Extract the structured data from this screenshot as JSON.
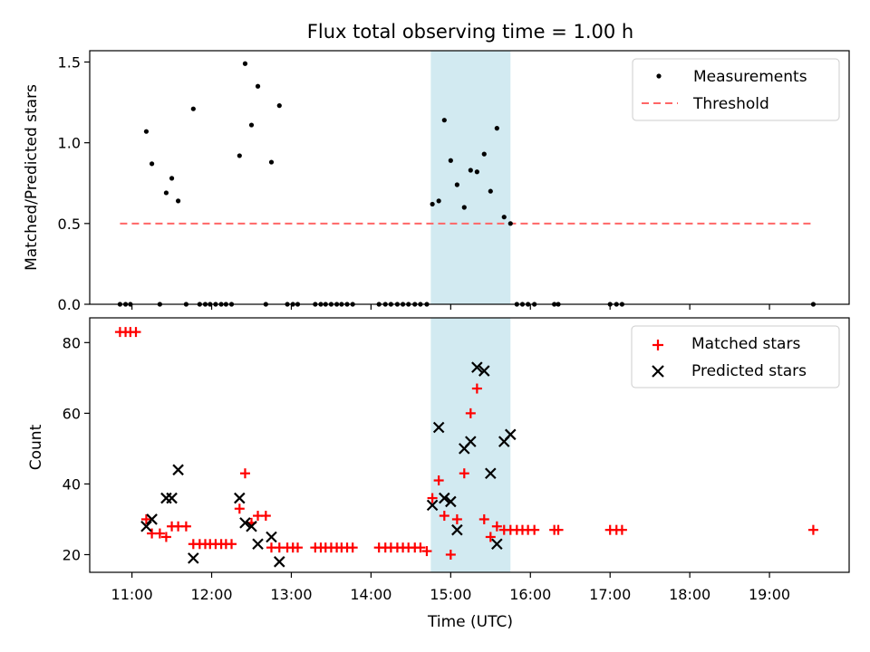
{
  "chart_data": {
    "type": "scatter",
    "title": "Flux total observing time = 1.00 h",
    "xlabel": "Time (UTC)",
    "x_unit": "hours UTC",
    "xlim": [
      10.47,
      20.0
    ],
    "xticks": [
      11,
      12,
      13,
      14,
      15,
      16,
      17,
      18,
      19
    ],
    "xtick_labels": [
      "11:00",
      "12:00",
      "13:00",
      "14:00",
      "15:00",
      "16:00",
      "17:00",
      "18:00",
      "19:00"
    ],
    "highlight_span": {
      "start": 14.75,
      "end": 15.75,
      "color": "#add8e6"
    },
    "panels": [
      {
        "id": "ratio",
        "ylabel": "Matched/Predicted stars",
        "ylim": [
          0,
          1.57
        ],
        "yticks": [
          0.0,
          0.5,
          1.0,
          1.5
        ],
        "ytick_labels": [
          "0.0",
          "0.5",
          "1.0",
          "1.5"
        ],
        "legend": {
          "placement": "top-right",
          "entries": [
            "Measurements",
            "Threshold"
          ]
        },
        "series": [
          {
            "name": "Measurements",
            "kind": "scatter",
            "marker": "dot",
            "color": "#000000",
            "x": [
              10.85,
              10.92,
              10.98,
              11.18,
              11.25,
              11.35,
              11.43,
              11.5,
              11.58,
              11.68,
              11.77,
              11.85,
              11.92,
              11.98,
              12.05,
              12.12,
              12.18,
              12.25,
              12.35,
              12.42,
              12.5,
              12.58,
              12.68,
              12.75,
              12.85,
              12.95,
              13.02,
              13.08,
              13.3,
              13.37,
              13.43,
              13.5,
              13.57,
              13.63,
              13.7,
              13.77,
              14.1,
              14.18,
              14.25,
              14.33,
              14.4,
              14.47,
              14.55,
              14.62,
              14.7,
              14.77,
              14.85,
              14.92,
              15.0,
              15.08,
              15.17,
              15.25,
              15.33,
              15.42,
              15.5,
              15.58,
              15.67,
              15.75,
              15.83,
              15.9,
              15.97,
              16.05,
              16.3,
              16.35,
              17.0,
              17.08,
              17.15,
              19.55
            ],
            "y": [
              0,
              0,
              0,
              1.07,
              0.87,
              0,
              0.69,
              0.78,
              0.64,
              0,
              1.21,
              0,
              0,
              0,
              0,
              0,
              0,
              0,
              0.92,
              1.49,
              1.11,
              1.35,
              0,
              0.88,
              1.23,
              0,
              0,
              0,
              0,
              0,
              0,
              0,
              0,
              0,
              0,
              0,
              0,
              0,
              0,
              0,
              0,
              0,
              0,
              0,
              0,
              0.62,
              0.64,
              1.14,
              0.89,
              0.74,
              0.6,
              0.83,
              0.82,
              0.93,
              0.7,
              1.09,
              0.54,
              0.5,
              0,
              0,
              0,
              0,
              0,
              0,
              0,
              0,
              0,
              0
            ]
          },
          {
            "name": "Threshold",
            "kind": "line",
            "style": "dashed",
            "color": "#ff6666",
            "x": [
              10.85,
              19.55
            ],
            "y": [
              0.5,
              0.5
            ]
          }
        ]
      },
      {
        "id": "counts",
        "ylabel": "Count",
        "ylim": [
          15,
          87
        ],
        "yticks": [
          20,
          40,
          60,
          80
        ],
        "ytick_labels": [
          "20",
          "40",
          "60",
          "80"
        ],
        "legend": {
          "placement": "top-right",
          "entries": [
            "Matched stars",
            "Predicted stars"
          ]
        },
        "series": [
          {
            "name": "Matched stars",
            "kind": "scatter",
            "marker": "plus",
            "color": "#ff0000",
            "x": [
              10.85,
              10.92,
              10.98,
              11.05,
              11.18,
              11.25,
              11.35,
              11.43,
              11.5,
              11.58,
              11.68,
              11.77,
              11.85,
              11.92,
              11.98,
              12.05,
              12.12,
              12.18,
              12.25,
              12.35,
              12.42,
              12.5,
              12.58,
              12.68,
              12.75,
              12.85,
              12.95,
              13.02,
              13.08,
              13.3,
              13.37,
              13.43,
              13.5,
              13.57,
              13.63,
              13.7,
              13.77,
              14.1,
              14.18,
              14.25,
              14.33,
              14.4,
              14.47,
              14.55,
              14.62,
              14.7,
              14.77,
              14.85,
              14.92,
              15.0,
              15.08,
              15.17,
              15.25,
              15.33,
              15.42,
              15.5,
              15.58,
              15.67,
              15.75,
              15.83,
              15.9,
              15.97,
              16.05,
              16.3,
              16.35,
              17.0,
              17.08,
              17.15,
              19.55
            ],
            "y": [
              83,
              83,
              83,
              83,
              30,
              26,
              26,
              25,
              28,
              28,
              28,
              23,
              23,
              23,
              23,
              23,
              23,
              23,
              23,
              33,
              43,
              29,
              31,
              31,
              22,
              22,
              22,
              22,
              22,
              22,
              22,
              22,
              22,
              22,
              22,
              22,
              22,
              22,
              22,
              22,
              22,
              22,
              22,
              22,
              22,
              21,
              36,
              41,
              31,
              20,
              30,
              43,
              60,
              67,
              30,
              25,
              28,
              27,
              27,
              27,
              27,
              27,
              27,
              27,
              27,
              27,
              27,
              27,
              27
            ]
          },
          {
            "name": "Predicted stars",
            "kind": "scatter",
            "marker": "x",
            "color": "#000000",
            "x": [
              11.18,
              11.25,
              11.43,
              11.5,
              11.58,
              11.77,
              12.35,
              12.42,
              12.5,
              12.58,
              12.75,
              12.85,
              14.77,
              14.85,
              14.92,
              15.0,
              15.08,
              15.17,
              15.25,
              15.33,
              15.42,
              15.5,
              15.58,
              15.67,
              15.75
            ],
            "y": [
              28,
              30,
              36,
              36,
              44,
              19,
              36,
              29,
              28,
              23,
              25,
              18,
              34,
              56,
              36,
              35,
              27,
              50,
              52,
              73,
              72,
              43,
              23,
              52,
              54
            ]
          }
        ]
      }
    ]
  }
}
